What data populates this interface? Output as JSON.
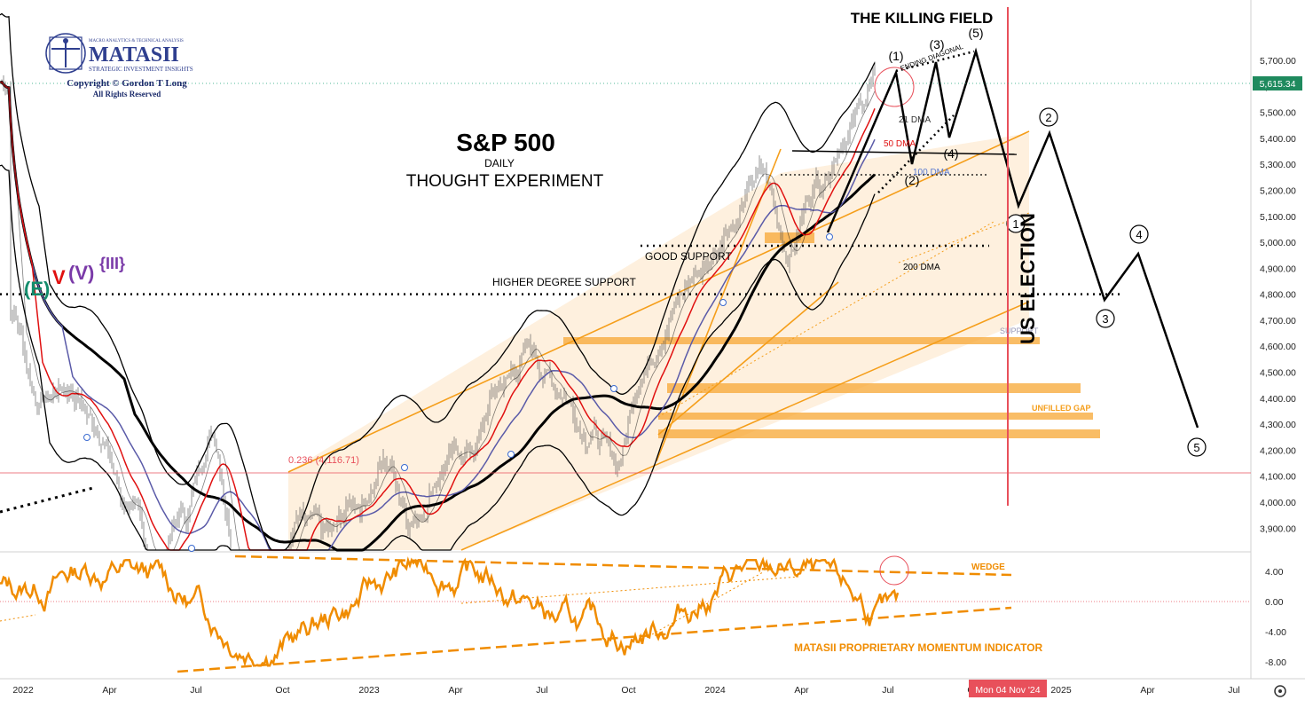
{
  "chart_data": [
    {
      "type": "line",
      "title": "S&P 500",
      "subtitle_1": "DAILY",
      "subtitle_2": "THOUGHT EXPERIMENT",
      "headline": "THE KILLING FIELD",
      "y_axis": {
        "ticks": [
          3900,
          4000,
          4100,
          4200,
          4300,
          4400,
          4500,
          4600,
          4700,
          4800,
          4900,
          5000,
          5100,
          5200,
          5300,
          5400,
          5500,
          5600,
          5700
        ],
        "tick_labels": [
          "3,900.00",
          "4,000.00",
          "4,100.00",
          "4,200.00",
          "4,300.00",
          "4,400.00",
          "4,500.00",
          "4,600.00",
          "4,700.00",
          "4,800.00",
          "4,900.00",
          "5,000.00",
          "5,100.00",
          "5,200.00",
          "5,300.00",
          "5,400.00",
          "5,500.00",
          "5,600.00",
          "5,700.00"
        ],
        "range": [
          3800,
          5860
        ]
      },
      "x_axis": {
        "tick_labels": [
          "2022",
          "Apr",
          "Jul",
          "Oct",
          "2023",
          "Apr",
          "Jul",
          "Oct",
          "2024",
          "Apr",
          "Jul",
          "Oct",
          "2025",
          "Apr",
          "Jul"
        ],
        "highlight_label": "Mon 04 Nov '24"
      },
      "last_price": 5615.34,
      "last_price_label": "5,615.34",
      "fib_label": "0.236 (4,116.71)",
      "fib_level": 4116.71,
      "levels": [
        {
          "name": "HIGHER DEGREE SUPPORT",
          "value": 4800
        },
        {
          "name": "GOOD SUPPORT",
          "value": 4985
        }
      ],
      "moving_average_labels": [
        "21 DMA",
        "50 DMA",
        "100 DMA",
        "200 DMA"
      ],
      "zone_labels": [
        "SUPPORT",
        "UNFILLED GAP"
      ],
      "event_label": "US ELECTION",
      "wave_labels_current": [
        "(1)",
        "(2)",
        "(3)",
        "(4)",
        "(5)"
      ],
      "diagonal_label": "ENDING DIAGONAL",
      "wave_labels_projection": [
        "1",
        "2",
        "3",
        "4",
        "5"
      ],
      "degree_labels": [
        "(E)",
        "V",
        "(V)",
        "{III}"
      ],
      "price_path": [
        [
          "2022-01",
          4750
        ],
        [
          "2022-02",
          4400
        ],
        [
          "2022-03",
          4450
        ],
        [
          "2022-04",
          4300
        ],
        [
          "2022-05",
          4000
        ],
        [
          "2022-06",
          3750
        ],
        [
          "2022-07",
          3950
        ],
        [
          "2022-08",
          4280
        ],
        [
          "2022-09",
          3700
        ],
        [
          "2022-10",
          3600
        ],
        [
          "2022-11",
          3900
        ],
        [
          "2022-12",
          3850
        ],
        [
          "2023-01",
          4000
        ],
        [
          "2023-02",
          4150
        ],
        [
          "2023-03",
          3950
        ],
        [
          "2023-04",
          4150
        ],
        [
          "2023-05",
          4200
        ],
        [
          "2023-06",
          4450
        ],
        [
          "2023-07",
          4580
        ],
        [
          "2023-08",
          4450
        ],
        [
          "2023-09",
          4300
        ],
        [
          "2023-10",
          4150
        ],
        [
          "2023-11",
          4550
        ],
        [
          "2023-12",
          4770
        ],
        [
          "2024-01",
          4900
        ],
        [
          "2024-02",
          5100
        ],
        [
          "2024-03",
          5250
        ],
        [
          "2024-04",
          4980
        ],
        [
          "2024-05",
          5250
        ],
        [
          "2024-06",
          5450
        ],
        [
          "2024-07",
          5615
        ]
      ],
      "projection_path": [
        [
          "2024-07",
          5660
        ],
        [
          "2024-07-20",
          5300
        ],
        [
          "2024-08-05",
          5680
        ],
        [
          "2024-08-20",
          5400
        ],
        [
          "2024-09-10",
          5720
        ],
        [
          "2024-10-20",
          5150
        ],
        [
          "2024-11-25",
          5400
        ],
        [
          "2025-02-10",
          4780
        ],
        [
          "2025-03-15",
          4960
        ],
        [
          "2025-05-20",
          4280
        ]
      ]
    },
    {
      "type": "line",
      "title": "MATASII PROPRIETARY MOMENTUM INDICATOR",
      "pattern_label": "WEDGE",
      "y_axis": {
        "ticks": [
          4,
          0,
          -4,
          -8
        ],
        "tick_labels": [
          "4.00",
          "0.00",
          "-4.00",
          "-8.00"
        ]
      }
    }
  ],
  "logo": {
    "name": "MATASII",
    "tagline_top": "MACRO ANALYTICS & TECHNICAL ANALYSIS",
    "tagline_bottom": "STRATEGIC INVESTMENT INSIGHTS",
    "copyright": "Copyright © Gordon T Long",
    "rights": "All Rights Reserved"
  },
  "colors": {
    "price_bars": "#555555",
    "ma21": "#000000",
    "ma50": "#e01010",
    "ma100": "#5a5aa8",
    "ma200": "#000000",
    "channel": "#f59e1a",
    "zone": "#f7a733",
    "election_line": "#e8505b",
    "accent_label": "#e8505b",
    "momentum": "#f08c00",
    "wave_path": "#000000"
  }
}
